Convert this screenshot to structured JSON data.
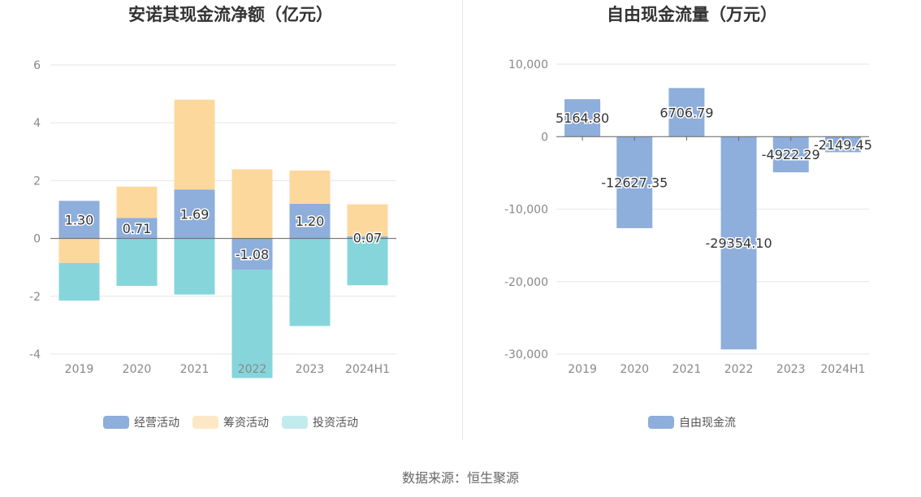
{
  "footer": "数据来源：恒生聚源",
  "colors": {
    "operating": "#8eaedb",
    "financing": "#fdd89c",
    "investing": "#86d5da",
    "fcf": "#8eaedb",
    "grid": "#e6e6e6",
    "axis": "#666666"
  },
  "chart_data": [
    {
      "type": "bar",
      "stacked": true,
      "title": "安诺其现金流净额（亿元）",
      "categories": [
        "2019",
        "2020",
        "2021",
        "2022",
        "2023",
        "2024H1"
      ],
      "ylim": [
        -4,
        6
      ],
      "yticks": [
        -4,
        -2,
        0,
        2,
        4,
        6
      ],
      "grid": true,
      "legend_position": "bottom",
      "series": [
        {
          "name": "经营活动",
          "values": [
            1.3,
            0.71,
            1.69,
            -1.08,
            1.2,
            0.07
          ],
          "labels": [
            "1.30",
            "0.71",
            "1.69",
            "-1.08",
            "1.20",
            "0.07"
          ]
        },
        {
          "name": "筹资活动",
          "values": [
            -0.85,
            1.08,
            3.11,
            2.39,
            1.15,
            1.11
          ]
        },
        {
          "name": "投资活动",
          "values": [
            -1.3,
            -1.64,
            -1.94,
            -3.75,
            -3.03,
            -1.62
          ]
        }
      ]
    },
    {
      "type": "bar",
      "title": "自由现金流量（万元）",
      "categories": [
        "2019",
        "2020",
        "2021",
        "2022",
        "2023",
        "2024H1"
      ],
      "ylim": [
        -30000,
        10000
      ],
      "yticks": [
        -30000,
        -20000,
        -10000,
        0,
        10000
      ],
      "ytick_labels": [
        "-30,000",
        "-20,000",
        "-10,000",
        "0",
        "10,000"
      ],
      "grid": true,
      "legend_position": "bottom",
      "series": [
        {
          "name": "自由现金流",
          "values": [
            5164.8,
            -12627.35,
            6706.79,
            -29354.1,
            -4922.29,
            -2149.45
          ],
          "labels": [
            "5164.80",
            "-12627.35",
            "6706.79",
            "-29354.10",
            "-4922.29",
            "-2149.45"
          ]
        }
      ]
    }
  ]
}
